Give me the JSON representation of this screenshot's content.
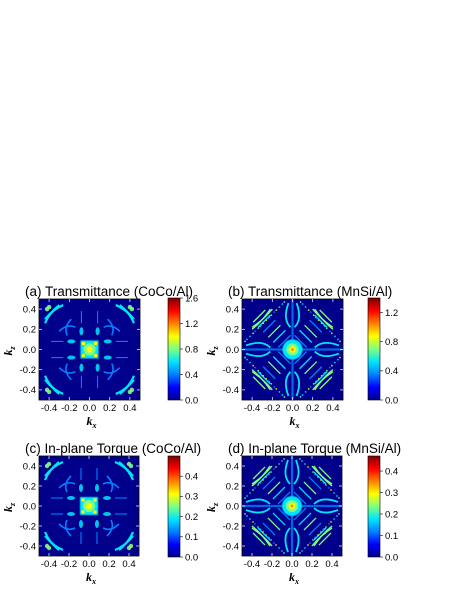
{
  "chart_data": [
    {
      "type": "heatmap",
      "title": "(a) Transmittance (CoCo/Al)",
      "xlabel": "k",
      "xlabel_sub": "x",
      "ylabel": "k",
      "ylabel_sub": "z",
      "xlim": [
        -0.5,
        0.5
      ],
      "ylim": [
        -0.5,
        0.5
      ],
      "x_ticks": [
        "-0.4",
        "-0.2",
        "0.0",
        "0.2",
        "0.4"
      ],
      "y_ticks": [
        "0.4",
        "0.2",
        "0.0",
        "-0.2",
        "-0.4"
      ],
      "colorbar": {
        "min": 0.0,
        "max": 1.6,
        "ticks": [
          "1.6",
          "1.2",
          "0.8",
          "0.4",
          "0.0"
        ],
        "tick_values": [
          1.6,
          1.2,
          0.8,
          0.4,
          0.0
        ]
      },
      "pattern": "sparse"
    },
    {
      "type": "heatmap",
      "title": "(b) Transmittance (MnSi/Al)",
      "xlabel": "k",
      "xlabel_sub": "x",
      "ylabel": "k",
      "ylabel_sub": "z",
      "xlim": [
        -0.5,
        0.5
      ],
      "ylim": [
        -0.5,
        0.5
      ],
      "x_ticks": [
        "-0.4",
        "-0.2",
        "0.0",
        "0.2",
        "0.4"
      ],
      "y_ticks": [
        "0.4",
        "0.2",
        "0.0",
        "-0.2",
        "-0.4"
      ],
      "colorbar": {
        "min": 0.0,
        "max": 1.4,
        "ticks": [
          "1.2",
          "0.8",
          "0.4",
          "0.0"
        ],
        "tick_values": [
          1.2,
          0.8,
          0.4,
          0.0
        ]
      },
      "pattern": "dense"
    },
    {
      "type": "heatmap",
      "title": "(c) In-plane Torque (CoCo/Al)",
      "xlabel": "k",
      "xlabel_sub": "x",
      "ylabel": "k",
      "ylabel_sub": "z",
      "xlim": [
        -0.5,
        0.5
      ],
      "ylim": [
        -0.5,
        0.5
      ],
      "x_ticks": [
        "-0.4",
        "-0.2",
        "0.0",
        "0.2",
        "0.4"
      ],
      "y_ticks": [
        "0.4",
        "0.2",
        "0.0",
        "-0.2",
        "-0.4"
      ],
      "colorbar": {
        "min": 0.0,
        "max": 0.5,
        "ticks": [
          "0.4",
          "0.3",
          "0.2",
          "0.1",
          "0.0"
        ],
        "tick_values": [
          0.4,
          0.3,
          0.2,
          0.1,
          0.0
        ]
      },
      "pattern": "sparse"
    },
    {
      "type": "heatmap",
      "title": "(d) In-plane Torque (MnSi/Al)",
      "xlabel": "k",
      "xlabel_sub": "x",
      "ylabel": "k",
      "ylabel_sub": "z",
      "xlim": [
        -0.5,
        0.5
      ],
      "ylim": [
        -0.5,
        0.5
      ],
      "x_ticks": [
        "-0.4",
        "-0.2",
        "0.0",
        "0.2",
        "0.4"
      ],
      "y_ticks": [
        "0.4",
        "0.2",
        "0.0",
        "-0.2",
        "-0.4"
      ],
      "colorbar": {
        "min": 0.0,
        "max": 0.47,
        "ticks": [
          "0.4",
          "0.3",
          "0.2",
          "0.1",
          "0.0"
        ],
        "tick_values": [
          0.4,
          0.3,
          0.2,
          0.1,
          0.0
        ]
      },
      "pattern": "dense"
    }
  ],
  "colormap": [
    "#00008b",
    "#0000ff",
    "#0080ff",
    "#00e5ff",
    "#7fff7f",
    "#ffff00",
    "#ff8000",
    "#ff0000",
    "#7f0000"
  ]
}
